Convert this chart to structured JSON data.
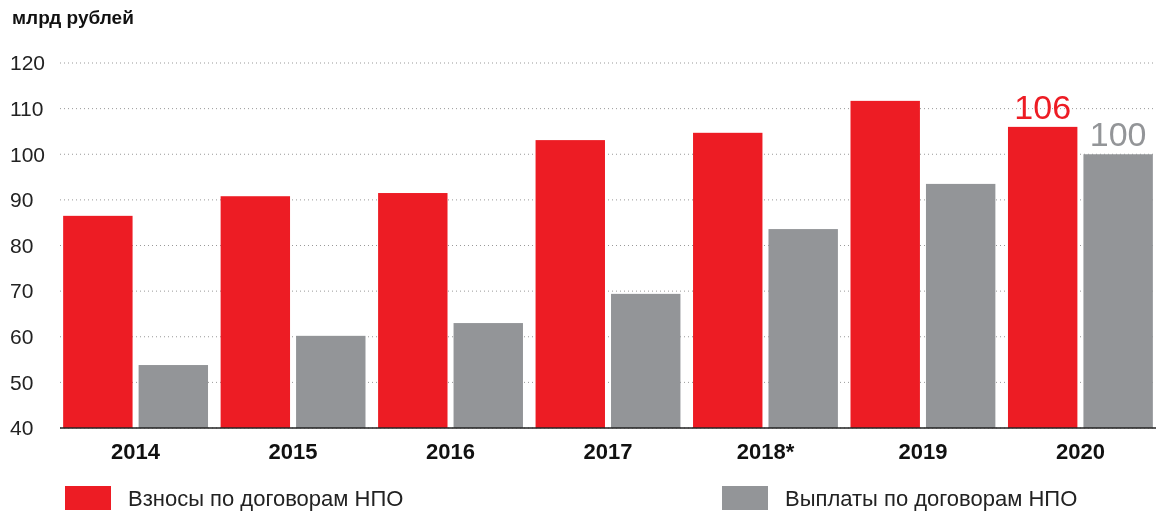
{
  "chart_data": {
    "type": "bar",
    "ylabel": "млрд рублей",
    "categories": [
      "2014",
      "2015",
      "2016",
      "2017",
      "2018*",
      "2019",
      "2020"
    ],
    "series": [
      {
        "name": "Взносы по договорам НПО",
        "color": "#ed1c24",
        "values": [
          86.5,
          90.8,
          91.5,
          103.1,
          104.7,
          111.7,
          106
        ],
        "value_labels": [
          null,
          null,
          null,
          null,
          null,
          null,
          "106"
        ]
      },
      {
        "name": "Выплаты по договорам НПО",
        "color": "#939598",
        "values": [
          53.8,
          60.2,
          63,
          69.4,
          83.6,
          93.5,
          100
        ],
        "value_labels": [
          null,
          null,
          null,
          null,
          null,
          null,
          "100"
        ]
      }
    ],
    "ylim": [
      40,
      120
    ],
    "yticks": [
      40,
      50,
      60,
      70,
      80,
      90,
      100,
      110,
      120
    ],
    "grid": "y",
    "legend": "bottom"
  }
}
